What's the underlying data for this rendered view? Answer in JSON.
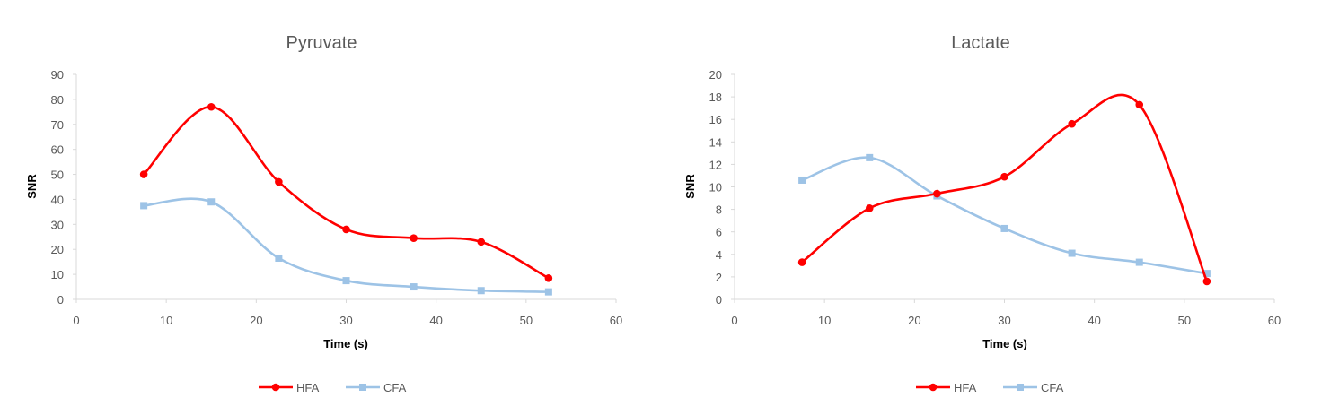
{
  "colors": {
    "hfa": "#ff0000",
    "cfa": "#9dc3e6",
    "axis": "#d9d9d9",
    "text": "#595959"
  },
  "chart_data": [
    {
      "type": "line",
      "title": "Pyruvate",
      "xlabel": "Time (s)",
      "ylabel": "SNR",
      "xlim": [
        0,
        60
      ],
      "ylim": [
        0,
        90
      ],
      "xticks": [
        0,
        10,
        20,
        30,
        40,
        50,
        60
      ],
      "yticks": [
        0,
        10,
        20,
        30,
        40,
        50,
        60,
        70,
        80,
        90
      ],
      "grid": false,
      "legend": "bottom",
      "series": [
        {
          "name": "HFA",
          "marker": "circle",
          "x": [
            7.5,
            15,
            22.5,
            30,
            37.5,
            45,
            52.5
          ],
          "y": [
            50,
            77,
            47,
            28,
            24.5,
            23,
            8.5
          ]
        },
        {
          "name": "CFA",
          "marker": "square",
          "x": [
            7.5,
            15,
            22.5,
            30,
            37.5,
            45,
            52.5
          ],
          "y": [
            37.5,
            39,
            16.5,
            7.5,
            5,
            3.5,
            3
          ]
        }
      ]
    },
    {
      "type": "line",
      "title": "Lactate",
      "xlabel": "Time (s)",
      "ylabel": "SNR",
      "xlim": [
        0,
        60
      ],
      "ylim": [
        0,
        20
      ],
      "xticks": [
        0,
        10,
        20,
        30,
        40,
        50,
        60
      ],
      "yticks": [
        0,
        2,
        4,
        6,
        8,
        10,
        12,
        14,
        16,
        18,
        20
      ],
      "grid": false,
      "legend": "bottom",
      "series": [
        {
          "name": "HFA",
          "marker": "circle",
          "x": [
            7.5,
            15,
            22.5,
            30,
            37.5,
            45,
            52.5
          ],
          "y": [
            3.3,
            8.1,
            9.4,
            10.9,
            15.6,
            17.3,
            1.6
          ]
        },
        {
          "name": "CFA",
          "marker": "square",
          "x": [
            7.5,
            15,
            22.5,
            30,
            37.5,
            45,
            52.5
          ],
          "y": [
            10.6,
            12.6,
            9.2,
            6.3,
            4.1,
            3.3,
            2.3
          ]
        }
      ]
    }
  ]
}
